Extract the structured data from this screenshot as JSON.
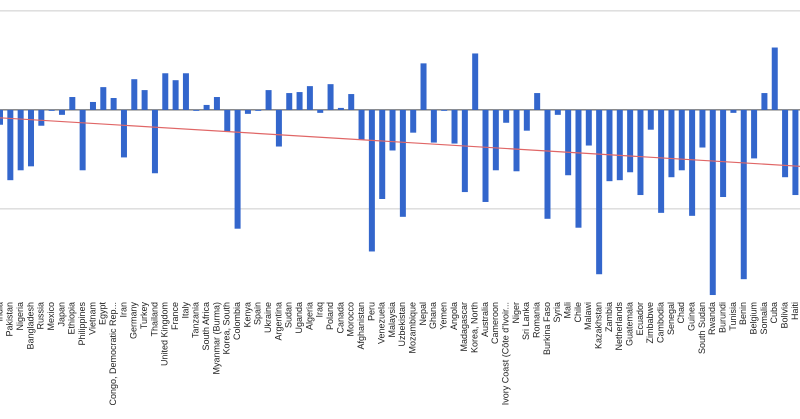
{
  "chart_data": {
    "type": "bar",
    "color": "#3366cc",
    "categories": [
      "India",
      "Pakistan",
      "Nigeria",
      "Bangladesh",
      "Russia",
      "Mexico",
      "Japan",
      "Ethiopia",
      "Philippines",
      "Vietnam",
      "Egypt",
      "Congo, Democratic Rep...",
      "Iran",
      "Germany",
      "Turkey",
      "Thailand",
      "United Kingdom",
      "France",
      "Italy",
      "Tanzania",
      "South Africa",
      "Myanmar (Burma)",
      "Korea, South",
      "Colombia",
      "Kenya",
      "Spain",
      "Ukraine",
      "Argentina",
      "Sudan",
      "Uganda",
      "Algeria",
      "Iraq",
      "Poland",
      "Canada",
      "Morocco",
      "Afghanistan",
      "Peru",
      "Venezuela",
      "Malaysia",
      "Uzbekistan",
      "Mozambique",
      "Nepal",
      "Ghana",
      "Yemen",
      "Angola",
      "Madagascar",
      "Korea, North",
      "Australia",
      "Cameroon",
      "Ivory Coast (Côte d'Ivoir...",
      "Niger",
      "Sri Lanka",
      "Romania",
      "Burkina Faso",
      "Syria",
      "Mali",
      "Chile",
      "Malawi",
      "Kazakhstan",
      "Zambia",
      "Netherlands",
      "Guatemala",
      "Ecuador",
      "Zimbabwe",
      "Cambodia",
      "Senegal",
      "Chad",
      "Guinea",
      "South Sudan",
      "Rwanda",
      "Burundi",
      "Tunisia",
      "Benin",
      "Belgium",
      "Somalia",
      "Cuba",
      "Bolivia",
      "Haiti"
    ],
    "values": [
      -0.15,
      -0.71,
      -0.61,
      -0.57,
      -0.16,
      -0.01,
      -0.05,
      0.13,
      -0.61,
      0.08,
      0.23,
      0.12,
      -0.48,
      0.31,
      0.2,
      -0.64,
      0.37,
      0.3,
      0.37,
      -0.01,
      0.05,
      0.13,
      -0.22,
      -1.2,
      -0.04,
      -0.01,
      0.2,
      -0.37,
      0.17,
      0.18,
      0.24,
      -0.03,
      0.26,
      0.02,
      0.16,
      -0.3,
      -1.43,
      -0.9,
      -0.41,
      -1.08,
      -0.23,
      0.47,
      -0.33,
      -0.01,
      -0.34,
      -0.83,
      0.57,
      -0.93,
      -0.61,
      -0.13,
      -0.62,
      -0.21,
      0.17,
      -1.1,
      -0.05,
      -0.66,
      -1.19,
      -0.36,
      -1.66,
      -0.72,
      -0.71,
      -0.63,
      -0.86,
      -0.2,
      -1.04,
      -0.68,
      -0.61,
      -1.07,
      -0.38,
      -1.87,
      -0.88,
      -0.03,
      -1.71,
      -0.49,
      0.17,
      0.63,
      -0.68,
      -0.86
    ],
    "ylim": [
      -1.9,
      1.11
    ],
    "yticks": [
      -1,
      0,
      1
    ],
    "grid": true,
    "trendline": {
      "color": "#e06666",
      "values": [
        -0.08,
        -0.57
      ]
    }
  }
}
